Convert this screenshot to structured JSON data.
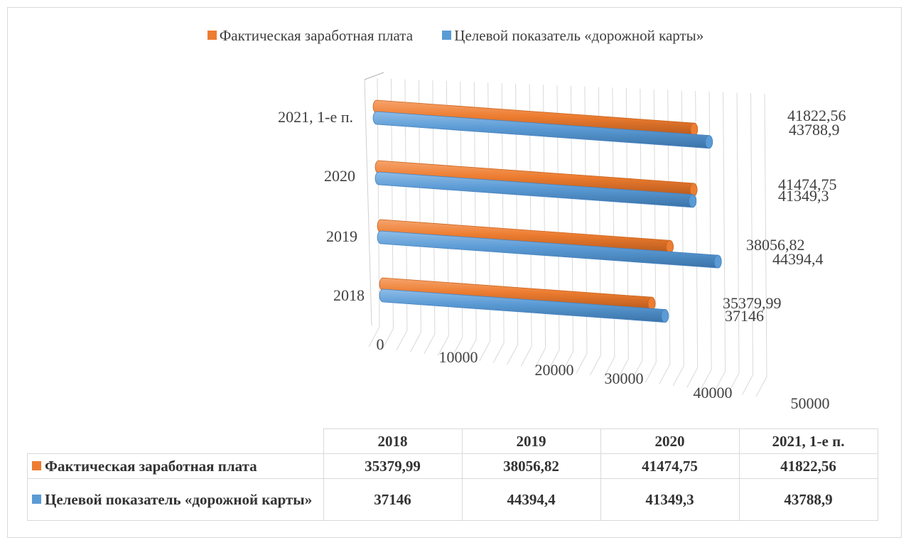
{
  "chart_data": {
    "type": "bar",
    "orientation": "horizontal",
    "style": "3d-cylinder",
    "categories": [
      "2018",
      "2019",
      "2020",
      "2021, 1-е п."
    ],
    "series": [
      {
        "name": "Фактическая заработная плата",
        "color": "#ed7d31",
        "values": [
          35379.99,
          38056.82,
          41474.75,
          41822.56
        ],
        "labels": [
          "35379,99",
          "38056,82",
          "41474,75",
          "41822,56"
        ]
      },
      {
        "name": "Целевой показатель «дорожной карты»",
        "color": "#5b9bd5",
        "values": [
          37146,
          44394.4,
          41349.3,
          43788.9
        ],
        "labels": [
          "37146",
          "44394,4",
          "41349,3",
          "43788,9"
        ]
      }
    ],
    "x_ticks": [
      "0",
      "10000",
      "20000",
      "30000",
      "40000",
      "50000"
    ],
    "xlim": [
      0,
      50000
    ],
    "grid": true,
    "legend_position": "top"
  },
  "table": {
    "headers": [
      "2018",
      "2019",
      "2020",
      "2021, 1-е п."
    ],
    "rows": [
      {
        "label": "Фактическая заработная плата",
        "color": "#ed7d31",
        "cells": [
          "35379,99",
          "38056,82",
          "41474,75",
          "41822,56"
        ]
      },
      {
        "label": "Целевой показатель «дорожной карты»",
        "color": "#5b9bd5",
        "cells": [
          "37146",
          "44394,4",
          "41349,3",
          "43788,9"
        ]
      }
    ]
  }
}
